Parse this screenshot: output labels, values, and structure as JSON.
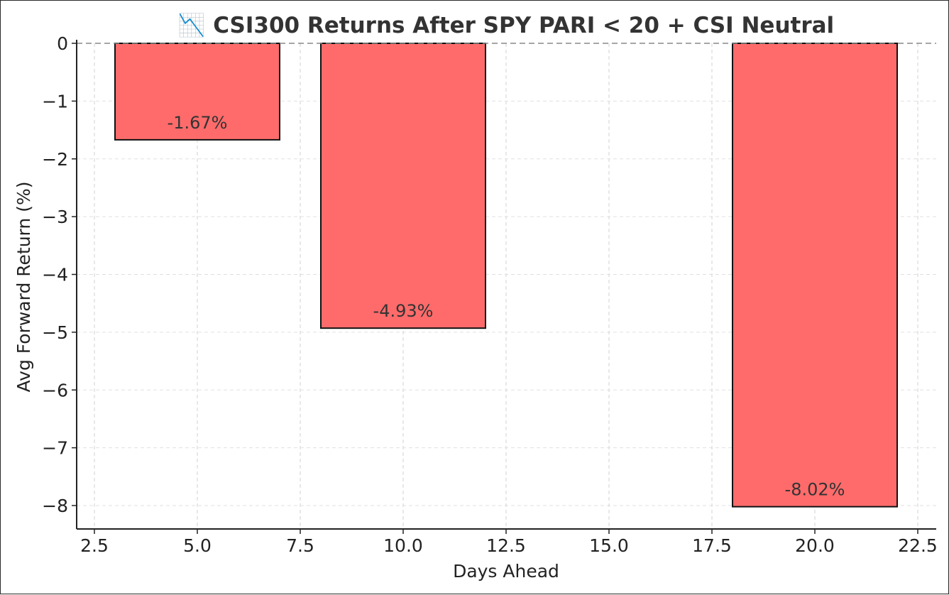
{
  "chart_data": {
    "type": "bar",
    "title": "📉 CSI300 Returns After SPY PARI < 20 + CSI Neutral",
    "xlabel": "Days Ahead",
    "ylabel": "Avg Forward Return (%)",
    "x": [
      5,
      10,
      20
    ],
    "values": [
      -1.67,
      -4.93,
      -8.02
    ],
    "data_labels": [
      "-1.67%",
      "-4.93%",
      "-8.02%"
    ],
    "bar_width": 4,
    "xlim": [
      2.0,
      22.9
    ],
    "ylim": [
      -8.4,
      0.0
    ],
    "xticks": [
      2.5,
      5.0,
      7.5,
      10.0,
      12.5,
      15.0,
      17.5,
      20.0,
      22.5
    ],
    "xtick_labels": [
      "2.5",
      "5.0",
      "7.5",
      "10.0",
      "12.5",
      "15.0",
      "17.5",
      "20.0",
      "22.5"
    ],
    "yticks": [
      0,
      -1,
      -2,
      -3,
      -4,
      -5,
      -6,
      -7,
      -8
    ],
    "ytick_labels": [
      "0",
      "−1",
      "−2",
      "−3",
      "−4",
      "−5",
      "−6",
      "−7",
      "−8"
    ],
    "bar_color": "#ff6b6b",
    "bar_edge_color": "#111111",
    "zero_line": "dashed",
    "grid": true
  }
}
